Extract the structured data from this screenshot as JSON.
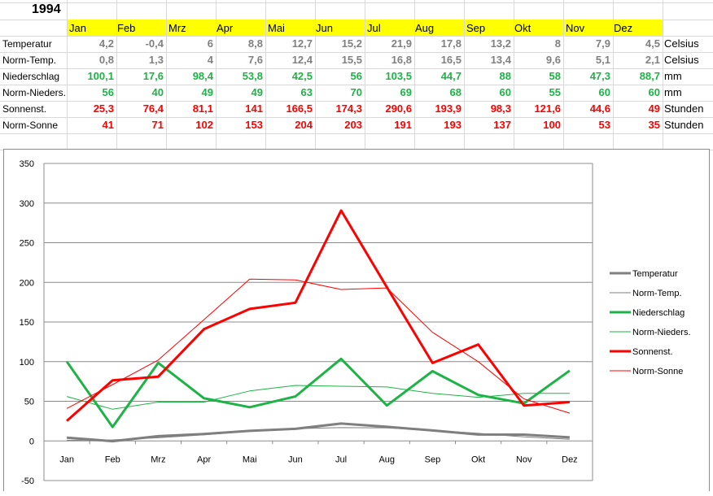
{
  "sheet": {
    "year": "1994",
    "months": [
      "Jan",
      "Feb",
      "Mrz",
      "Apr",
      "Mai",
      "Jun",
      "Jul",
      "Aug",
      "Sep",
      "Okt",
      "Nov",
      "Dez"
    ],
    "rows": [
      {
        "label": "Temperatur",
        "values": [
          "4,2",
          "-0,4",
          "6",
          "8,8",
          "12,7",
          "15,2",
          "21,9",
          "17,8",
          "13,2",
          "8",
          "7,9",
          "4,5"
        ],
        "unit": "Celsius",
        "color": "#808080"
      },
      {
        "label": "Norm-Temp.",
        "values": [
          "0,8",
          "1,3",
          "4",
          "7,6",
          "12,4",
          "15,5",
          "16,8",
          "16,5",
          "13,4",
          "9,6",
          "5,1",
          "2,1"
        ],
        "unit": "Celsius",
        "color": "#808080"
      },
      {
        "label": "Niederschlag",
        "values": [
          "100,1",
          "17,6",
          "98,4",
          "53,8",
          "42,5",
          "56",
          "103,5",
          "44,7",
          "88",
          "58",
          "47,3",
          "88,7"
        ],
        "unit": "mm",
        "color": "#1db346"
      },
      {
        "label": "Norm-Nieders.",
        "values": [
          "56",
          "40",
          "49",
          "49",
          "63",
          "70",
          "69",
          "68",
          "60",
          "55",
          "60",
          "60"
        ],
        "unit": "mm",
        "color": "#1db346"
      },
      {
        "label": "Sonnenst.",
        "values": [
          "25,3",
          "76,4",
          "81,1",
          "141",
          "166,5",
          "174,3",
          "290,6",
          "193,9",
          "98,3",
          "121,6",
          "44,6",
          "49"
        ],
        "unit": "Stunden",
        "color": "#ff0000"
      },
      {
        "label": "Norm-Sonne",
        "values": [
          "41",
          "71",
          "102",
          "153",
          "204",
          "203",
          "191",
          "193",
          "137",
          "100",
          "53",
          "35"
        ],
        "unit": "Stunden",
        "color": "#ff0000"
      }
    ]
  },
  "chart_data": {
    "type": "line",
    "categories": [
      "Jan",
      "Feb",
      "Mrz",
      "Apr",
      "Mai",
      "Jun",
      "Jul",
      "Aug",
      "Sep",
      "Okt",
      "Nov",
      "Dez"
    ],
    "ylim": [
      -50,
      350
    ],
    "yticks": [
      "-50",
      "0",
      "50",
      "100",
      "150",
      "200",
      "250",
      "300",
      "350"
    ],
    "grid": true,
    "legend": "right",
    "series": [
      {
        "name": "Temperatur",
        "values": [
          4.2,
          -0.4,
          6,
          8.8,
          12.7,
          15.2,
          21.9,
          17.8,
          13.2,
          8,
          7.9,
          4.5
        ],
        "color": "#7f7f7f",
        "width": 3
      },
      {
        "name": "Norm-Temp.",
        "values": [
          0.8,
          1.3,
          4,
          7.6,
          12.4,
          15.5,
          16.8,
          16.5,
          13.4,
          9.6,
          5.1,
          2.1
        ],
        "color": "#7f7f7f",
        "width": 1
      },
      {
        "name": "Niederschlag",
        "values": [
          100.1,
          17.6,
          98.4,
          53.8,
          42.5,
          56,
          103.5,
          44.7,
          88,
          58,
          47.3,
          88.7
        ],
        "color": "#1db346",
        "width": 3
      },
      {
        "name": "Norm-Nieders.",
        "values": [
          56,
          40,
          49,
          49,
          63,
          70,
          69,
          68,
          60,
          55,
          60,
          60
        ],
        "color": "#1db346",
        "width": 1
      },
      {
        "name": "Sonnenst.",
        "values": [
          25.3,
          76.4,
          81.1,
          141,
          166.5,
          174.3,
          290.6,
          193.9,
          98.3,
          121.6,
          44.6,
          49
        ],
        "color": "#ff0000",
        "width": 3
      },
      {
        "name": "Norm-Sonne",
        "values": [
          41,
          71,
          102,
          153,
          204,
          203,
          191,
          193,
          137,
          100,
          53,
          35
        ],
        "color": "#ff0000",
        "width": 1
      }
    ]
  }
}
